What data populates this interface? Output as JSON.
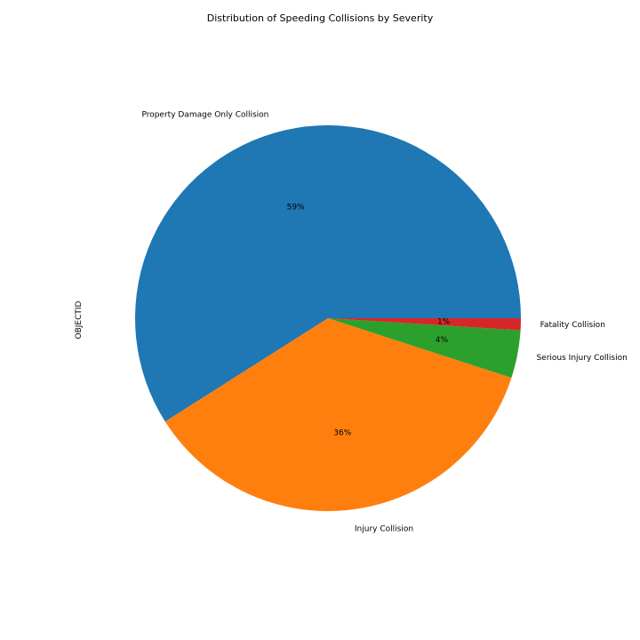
{
  "chart_data": {
    "type": "pie",
    "title": "Distribution of Speeding Collisions by Severity",
    "ylabel": "OBJECTID",
    "categories": [
      "Property Damage Only Collision",
      "Injury Collision",
      "Serious Injury Collision",
      "Fatality Collision"
    ],
    "values": [
      59,
      36,
      4,
      1
    ],
    "percent_labels": [
      "59%",
      "36%",
      "4%",
      "1%"
    ],
    "colors": [
      "#1f77b4",
      "#ff7f0e",
      "#2ca02c",
      "#d62728"
    ],
    "start_angle_deg": 0,
    "direction": "counterclockwise"
  }
}
